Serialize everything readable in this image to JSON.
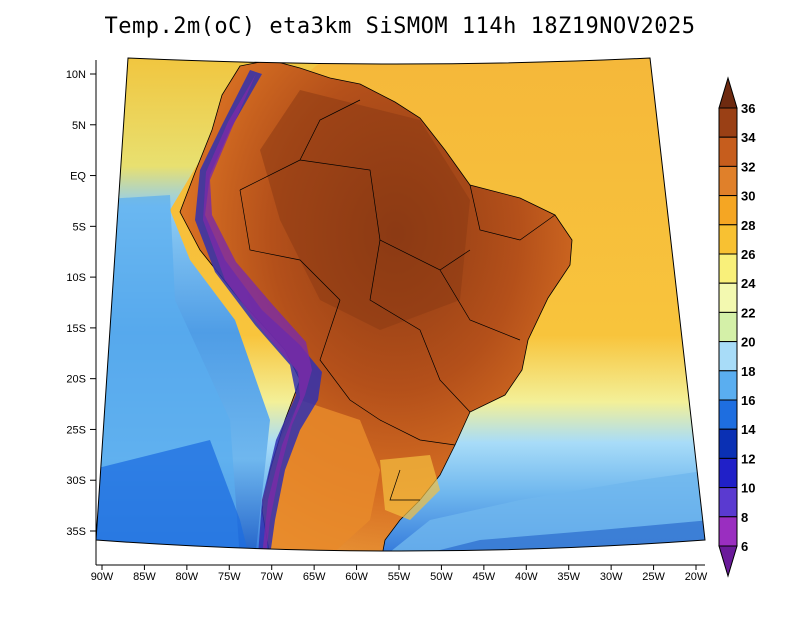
{
  "title": "Temp.2m(oC) eta3km SiSMOM 114h 18Z19NOV2025",
  "map": {
    "lat_ticks": [
      "10N",
      "5N",
      "EQ",
      "5S",
      "10S",
      "15S",
      "20S",
      "25S",
      "30S",
      "35S"
    ],
    "lat_values": [
      10,
      5,
      0,
      -5,
      -10,
      -15,
      -20,
      -25,
      -30,
      -35
    ],
    "lon_ticks": [
      "90W",
      "85W",
      "80W",
      "75W",
      "70W",
      "65W",
      "60W",
      "55W",
      "50W",
      "45W",
      "40W",
      "35W",
      "30W",
      "25W",
      "20W"
    ],
    "lon_values": [
      -90,
      -85,
      -80,
      -75,
      -70,
      -65,
      -60,
      -55,
      -50,
      -45,
      -40,
      -35,
      -30,
      -25,
      -20
    ],
    "lon_range": [
      -91,
      -20
    ],
    "lat_range": [
      -38,
      12
    ],
    "ocean_colors": {
      "warm_atlantic": "#f5b83a",
      "equatorial_pacific": "#e8d24a",
      "pacific": "#6fb7ee",
      "far_pacific": "#1f74d6",
      "south_atlantic": "#8fcdf4",
      "deep_south": "#1f5fc8"
    },
    "land_colors": {
      "hot": "#8c3a14",
      "warm": "#c95a1c",
      "mild": "#e8892a",
      "andes_cold": "#3030b0",
      "andes_peak": "#7a2aa8"
    }
  },
  "colorbar": {
    "labels": [
      "36",
      "34",
      "32",
      "30",
      "28",
      "26",
      "24",
      "22",
      "20",
      "18",
      "16",
      "14",
      "12",
      "10",
      "8",
      "6"
    ],
    "colors": [
      "#6e2a10",
      "#9a4015",
      "#c65d1d",
      "#e0802a",
      "#f5a623",
      "#f8c132",
      "#f9f07a",
      "#f3f9b0",
      "#d4f0a8",
      "#a8dcf8",
      "#5aaef0",
      "#1e6ee0",
      "#0a30b4",
      "#2020c8",
      "#5a3ad0",
      "#9a2ec0",
      "#6a1a9a"
    ]
  }
}
